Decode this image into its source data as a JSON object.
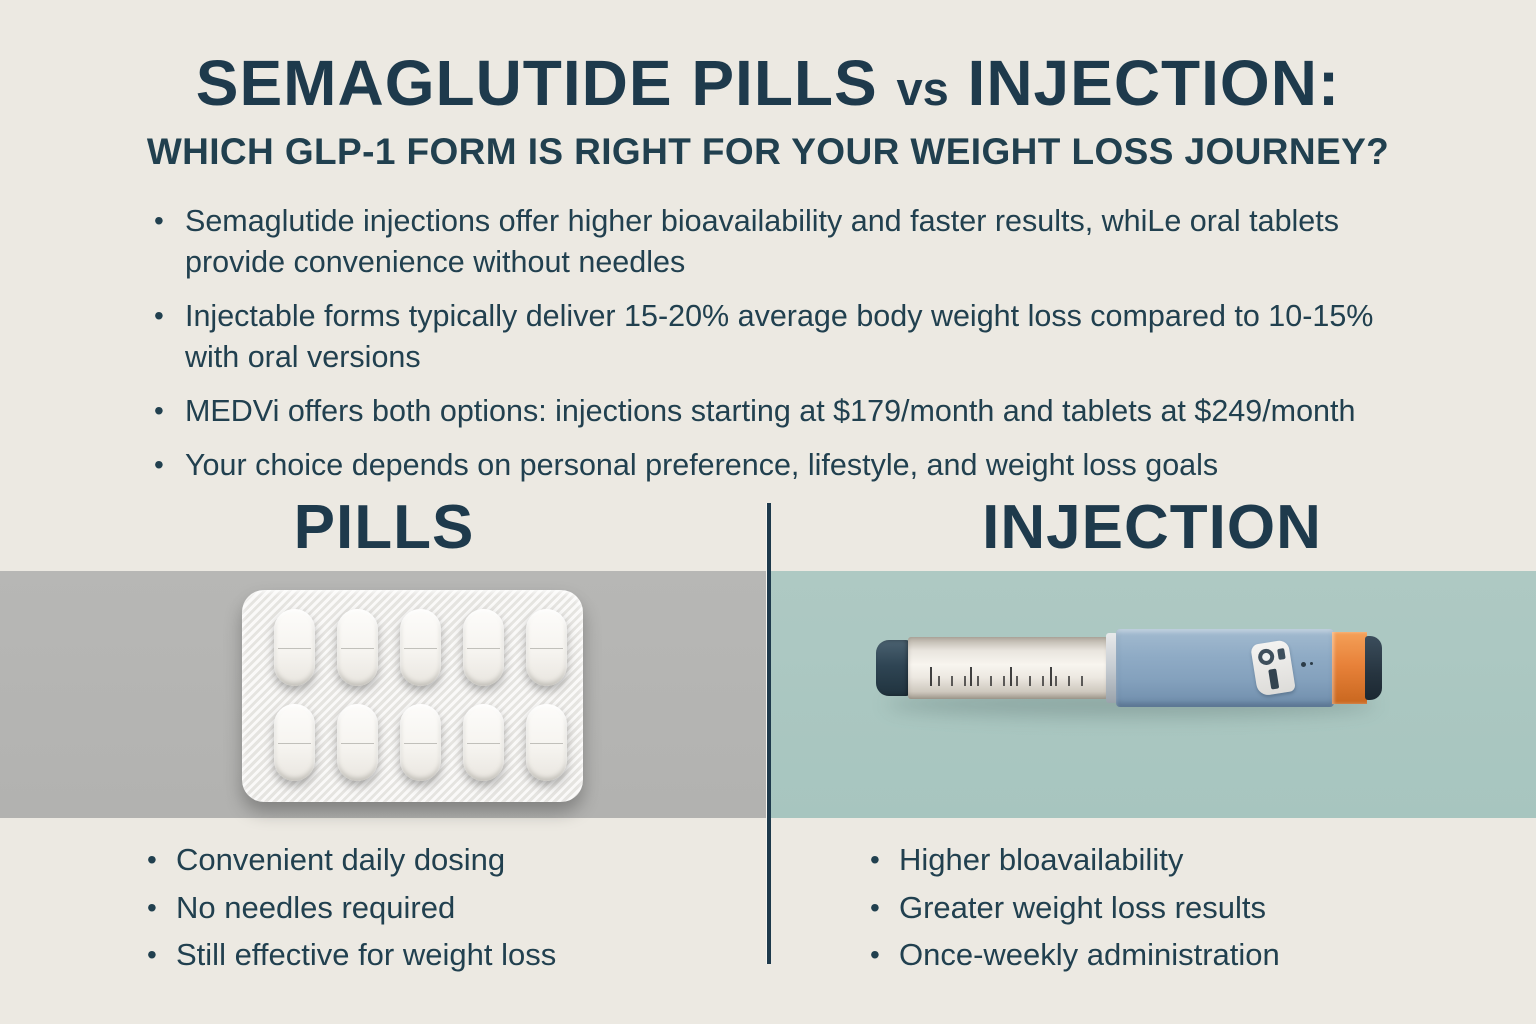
{
  "header": {
    "title_left": "SEMAGLUTIDE PILLS",
    "title_vs": "vs",
    "title_right": "INJECTION:",
    "subtitle": "WHICH GLP-1 FORM IS RIGHT FOR YOUR WEIGHT LOSS JOURNEY?"
  },
  "intro_bullets": [
    "Semaglutide injections offer higher bioavailability and faster results, whiLe oral tablets provide convenience without needles",
    "Injectable forms typically deliver 15-20% average body weight loss compared to 10-15% with oral versions",
    "MEDVi offers both options: injections starting at $179/month and tablets at $249/month",
    "Your choice depends on personal preference, lifestyle, and weight loss goals"
  ],
  "columns": {
    "pills": {
      "header": "PILLS",
      "bullets": [
        "Convenient daily dosing",
        "No needles required",
        "Still effective for weight loss"
      ]
    },
    "injection": {
      "header": "INJECTION",
      "bullets": [
        "Higher bloavailability",
        "Greater weight loss results",
        "Once-weekly administration"
      ]
    }
  },
  "colors": {
    "background": "#ece9e2",
    "text_navy": "#1e3a4c",
    "divider_navy": "#1e3a4c",
    "pills_panel_bg": "#b4b4b2",
    "injection_panel_bg": "#aac8c2",
    "pen_body_blue": "#8fabc5",
    "pen_cap_navy": "#2f4554",
    "pen_orange": "#e8823a"
  }
}
